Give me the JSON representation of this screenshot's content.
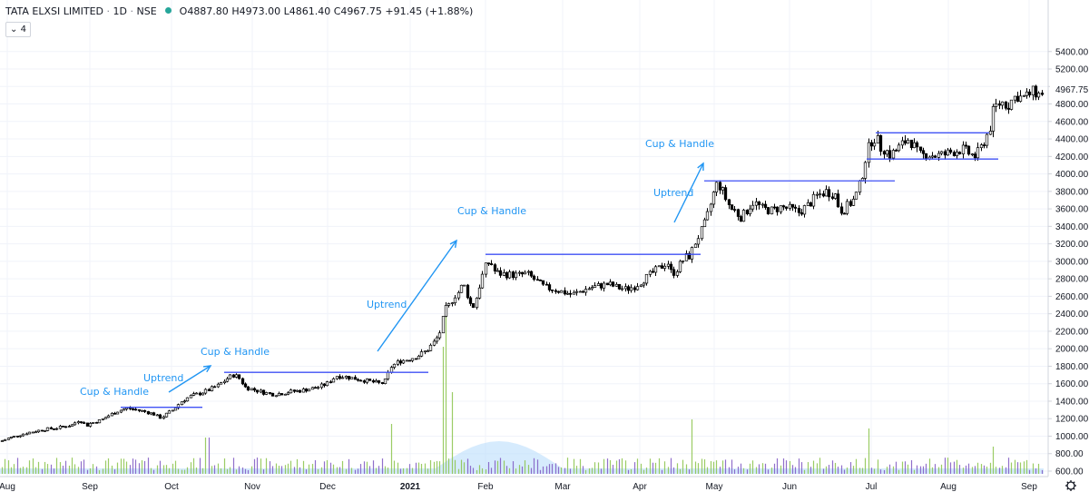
{
  "header": {
    "symbol": "TATA ELXSI LIMITED",
    "interval": "1D",
    "exchange": "NSE",
    "open": "O4887.80",
    "high": "H4973.00",
    "low": "L4861.40",
    "close": "C4967.75",
    "change": "+91.45 (+1.88%)",
    "indicator_count": "4"
  },
  "colors": {
    "bull": "#ffffff",
    "bear": "#000000",
    "wick": "#000000",
    "annotation": "#2196f3",
    "resistance_line": "#3f51f5",
    "volume_up": "#8bc34a",
    "volume_down": "#7e57c2",
    "volume_ma_fill": "#bbdefb",
    "grid": "#f0f3fa"
  },
  "chart_data": {
    "type": "candlestick",
    "title": "TATA ELXSI LIMITED · 1D · NSE",
    "y_axis_ticks": [
      "5400.00",
      "5200.00",
      "5000.00",
      "4800.00",
      "4600.00",
      "4400.00",
      "4200.00",
      "4000.00",
      "3800.00",
      "3600.00",
      "3400.00",
      "3200.00",
      "3000.00",
      "2800.00",
      "2600.00",
      "2400.00",
      "2200.00",
      "2000.00",
      "1800.00",
      "1600.00",
      "1400.00",
      "1200.00",
      "1000.00",
      "800.00",
      "600.00"
    ],
    "ylim": [
      560,
      5430
    ],
    "last_price": "4967.75",
    "x_axis_ticks": [
      "Aug",
      "Sep",
      "Oct",
      "Nov",
      "Dec",
      "2021",
      "Feb",
      "Mar",
      "Apr",
      "May",
      "Jun",
      "Jul",
      "Aug",
      "Sep"
    ],
    "series": [
      {
        "name": "Close",
        "points": [
          [
            0,
            940
          ],
          [
            10,
            980
          ],
          [
            20,
            1010
          ],
          [
            30,
            1040
          ],
          [
            40,
            1060
          ],
          [
            50,
            1080
          ],
          [
            60,
            1090
          ],
          [
            70,
            1110
          ],
          [
            80,
            1130
          ],
          [
            85,
            1180
          ],
          [
            90,
            1170
          ],
          [
            95,
            1120
          ],
          [
            100,
            1150
          ],
          [
            110,
            1180
          ],
          [
            120,
            1240
          ],
          [
            130,
            1290
          ],
          [
            140,
            1320
          ],
          [
            150,
            1300
          ],
          [
            160,
            1280
          ],
          [
            170,
            1250
          ],
          [
            175,
            1210
          ],
          [
            180,
            1230
          ],
          [
            190,
            1300
          ],
          [
            200,
            1400
          ],
          [
            210,
            1460
          ],
          [
            220,
            1490
          ],
          [
            230,
            1530
          ],
          [
            240,
            1580
          ],
          [
            250,
            1660
          ],
          [
            256,
            1700
          ],
          [
            262,
            1680
          ],
          [
            270,
            1560
          ],
          [
            280,
            1530
          ],
          [
            290,
            1500
          ],
          [
            300,
            1480
          ],
          [
            310,
            1490
          ],
          [
            320,
            1510
          ],
          [
            330,
            1520
          ],
          [
            340,
            1540
          ],
          [
            350,
            1560
          ],
          [
            360,
            1600
          ],
          [
            370,
            1690
          ],
          [
            380,
            1680
          ],
          [
            390,
            1660
          ],
          [
            400,
            1640
          ],
          [
            410,
            1620
          ],
          [
            420,
            1600
          ],
          [
            425,
            1640
          ],
          [
            430,
            1790
          ],
          [
            440,
            1860
          ],
          [
            450,
            1880
          ],
          [
            460,
            1920
          ],
          [
            470,
            1980
          ],
          [
            480,
            2100
          ],
          [
            485,
            2200
          ],
          [
            490,
            2450
          ],
          [
            495,
            2500
          ],
          [
            500,
            2600
          ],
          [
            505,
            2650
          ],
          [
            510,
            2750
          ],
          [
            515,
            2600
          ],
          [
            520,
            2450
          ],
          [
            525,
            2600
          ],
          [
            530,
            2800
          ],
          [
            535,
            2950
          ],
          [
            540,
            3000
          ],
          [
            545,
            2880
          ],
          [
            550,
            2860
          ],
          [
            560,
            2850
          ],
          [
            570,
            2840
          ],
          [
            580,
            2860
          ],
          [
            590,
            2780
          ],
          [
            600,
            2700
          ],
          [
            610,
            2680
          ],
          [
            620,
            2650
          ],
          [
            630,
            2620
          ],
          [
            640,
            2660
          ],
          [
            650,
            2700
          ],
          [
            660,
            2720
          ],
          [
            670,
            2740
          ],
          [
            680,
            2700
          ],
          [
            690,
            2680
          ],
          [
            700,
            2720
          ],
          [
            710,
            2800
          ],
          [
            720,
            2880
          ],
          [
            730,
            2950
          ],
          [
            735,
            3000
          ],
          [
            740,
            2850
          ],
          [
            745,
            2900
          ],
          [
            750,
            2980
          ],
          [
            755,
            3050
          ],
          [
            760,
            3060
          ],
          [
            765,
            3200
          ],
          [
            770,
            3300
          ],
          [
            775,
            3400
          ],
          [
            780,
            3550
          ],
          [
            785,
            3750
          ],
          [
            790,
            3900
          ],
          [
            795,
            3820
          ],
          [
            800,
            3700
          ],
          [
            805,
            3600
          ],
          [
            810,
            3580
          ],
          [
            815,
            3500
          ],
          [
            820,
            3540
          ],
          [
            825,
            3620
          ],
          [
            830,
            3680
          ],
          [
            840,
            3600
          ],
          [
            850,
            3580
          ],
          [
            860,
            3620
          ],
          [
            870,
            3600
          ],
          [
            880,
            3560
          ],
          [
            890,
            3640
          ],
          [
            900,
            3750
          ],
          [
            910,
            3800
          ],
          [
            920,
            3760
          ],
          [
            925,
            3580
          ],
          [
            930,
            3600
          ],
          [
            935,
            3650
          ],
          [
            940,
            3700
          ],
          [
            945,
            3800
          ],
          [
            950,
            4000
          ],
          [
            955,
            4250
          ],
          [
            960,
            4380
          ],
          [
            965,
            4420
          ],
          [
            970,
            4300
          ],
          [
            975,
            4280
          ],
          [
            980,
            4220
          ],
          [
            985,
            4250
          ],
          [
            990,
            4300
          ],
          [
            995,
            4350
          ],
          [
            1000,
            4400
          ],
          [
            1005,
            4350
          ],
          [
            1010,
            4250
          ],
          [
            1015,
            4200
          ],
          [
            1020,
            4230
          ],
          [
            1030,
            4210
          ],
          [
            1040,
            4220
          ],
          [
            1050,
            4260
          ],
          [
            1060,
            4280
          ],
          [
            1070,
            4220
          ],
          [
            1075,
            4200
          ],
          [
            1080,
            4280
          ],
          [
            1085,
            4400
          ],
          [
            1090,
            4500
          ],
          [
            1095,
            4750
          ],
          [
            1100,
            4800
          ],
          [
            1105,
            4820
          ],
          [
            1110,
            4780
          ],
          [
            1115,
            4850
          ],
          [
            1120,
            4900
          ],
          [
            1125,
            4870
          ],
          [
            1130,
            4880
          ],
          [
            1135,
            4920
          ],
          [
            1140,
            4940
          ],
          [
            1145,
            4900
          ],
          [
            1150,
            4967.75
          ]
        ]
      }
    ],
    "resistance_lines": [
      {
        "label": "",
        "y": 1330
      },
      {
        "label": "",
        "y": 1730
      },
      {
        "label": "",
        "y": 3080
      },
      {
        "label": "",
        "y": 3920
      },
      {
        "label": "",
        "y": 4470
      },
      {
        "label": "",
        "y": 4170
      }
    ],
    "annotations": [
      {
        "text": "Cup & Handle"
      },
      {
        "text": "Uptrend"
      },
      {
        "text": "Cup & Handle"
      },
      {
        "text": "Uptrend"
      },
      {
        "text": "Cup & Handle"
      },
      {
        "text": "Uptrend"
      },
      {
        "text": "Cup & Handle"
      }
    ]
  }
}
